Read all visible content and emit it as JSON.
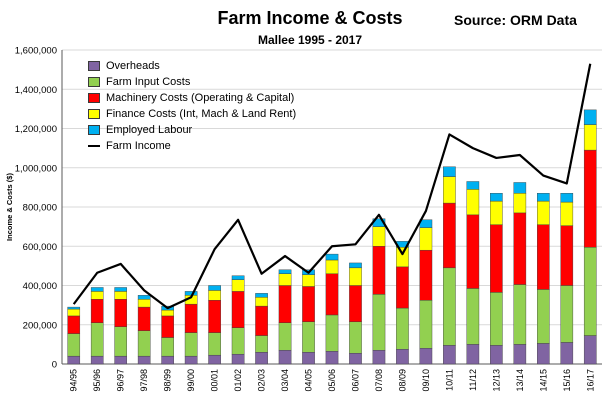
{
  "title": "Farm Income & Costs",
  "subtitle": "Mallee 1995 - 2017",
  "source": "Source: ORM Data",
  "chart_data": {
    "type": "bar",
    "stacked": true,
    "title": "Farm Income & Costs",
    "subtitle": "Mallee 1995 - 2017",
    "xlabel": "",
    "ylabel": "Income & Costs ($)",
    "ylim": [
      0,
      1600000
    ],
    "yticks": [
      "0",
      "200,000",
      "400,000",
      "600,000",
      "800,000",
      "1,000,000",
      "1,200,000",
      "1,400,000",
      "1,600,000"
    ],
    "ytick_values": [
      0,
      200000,
      400000,
      600000,
      800000,
      1000000,
      1200000,
      1400000,
      1600000
    ],
    "grid": true,
    "legend_position": "top-left",
    "categories": [
      "94/95",
      "95/96",
      "96/97",
      "97/98",
      "98/99",
      "99/00",
      "00/01",
      "01/02",
      "02/03",
      "03/04",
      "04/05",
      "05/06",
      "06/07",
      "07/08",
      "08/09",
      "09/10",
      "10/11",
      "11/12",
      "12/13",
      "13/14",
      "14/15",
      "15/16",
      "16/17"
    ],
    "series": [
      {
        "name": "Overheads",
        "kind": "bar",
        "color": "#8064a2",
        "values": [
          40000,
          40000,
          40000,
          40000,
          40000,
          40000,
          45000,
          50000,
          60000,
          70000,
          60000,
          65000,
          55000,
          70000,
          75000,
          80000,
          95000,
          100000,
          95000,
          100000,
          105000,
          110000,
          145000
        ]
      },
      {
        "name": "Farm Input Costs",
        "kind": "bar",
        "color": "#92d050",
        "values": [
          115000,
          170000,
          150000,
          130000,
          95000,
          120000,
          115000,
          135000,
          85000,
          140000,
          155000,
          185000,
          160000,
          285000,
          210000,
          245000,
          395000,
          285000,
          270000,
          305000,
          275000,
          290000,
          450000
        ]
      },
      {
        "name": "Machinery Costs (Operating & Capital)",
        "kind": "bar",
        "color": "#ff0000",
        "values": [
          90000,
          120000,
          140000,
          120000,
          110000,
          145000,
          165000,
          185000,
          150000,
          190000,
          180000,
          210000,
          185000,
          245000,
          210000,
          255000,
          330000,
          375000,
          345000,
          365000,
          330000,
          305000,
          495000
        ]
      },
      {
        "name": "Finance Costs (Int, Mach & Land Rent)",
        "kind": "bar",
        "color": "#ffff00",
        "values": [
          35000,
          40000,
          40000,
          40000,
          30000,
          45000,
          50000,
          60000,
          45000,
          60000,
          60000,
          70000,
          90000,
          100000,
          100000,
          115000,
          135000,
          130000,
          120000,
          100000,
          120000,
          120000,
          130000
        ]
      },
      {
        "name": "Employed Labour",
        "kind": "bar",
        "color": "#00b0f0",
        "values": [
          10000,
          20000,
          20000,
          20000,
          20000,
          20000,
          25000,
          20000,
          20000,
          20000,
          25000,
          30000,
          25000,
          40000,
          30000,
          40000,
          50000,
          40000,
          40000,
          55000,
          40000,
          45000,
          75000
        ]
      },
      {
        "name": "Farm Income",
        "kind": "line",
        "color": "#000000",
        "values": [
          305000,
          465000,
          510000,
          375000,
          285000,
          340000,
          585000,
          735000,
          460000,
          550000,
          465000,
          600000,
          610000,
          760000,
          560000,
          780000,
          1170000,
          1100000,
          1050000,
          1065000,
          960000,
          920000,
          1530000
        ]
      }
    ]
  }
}
